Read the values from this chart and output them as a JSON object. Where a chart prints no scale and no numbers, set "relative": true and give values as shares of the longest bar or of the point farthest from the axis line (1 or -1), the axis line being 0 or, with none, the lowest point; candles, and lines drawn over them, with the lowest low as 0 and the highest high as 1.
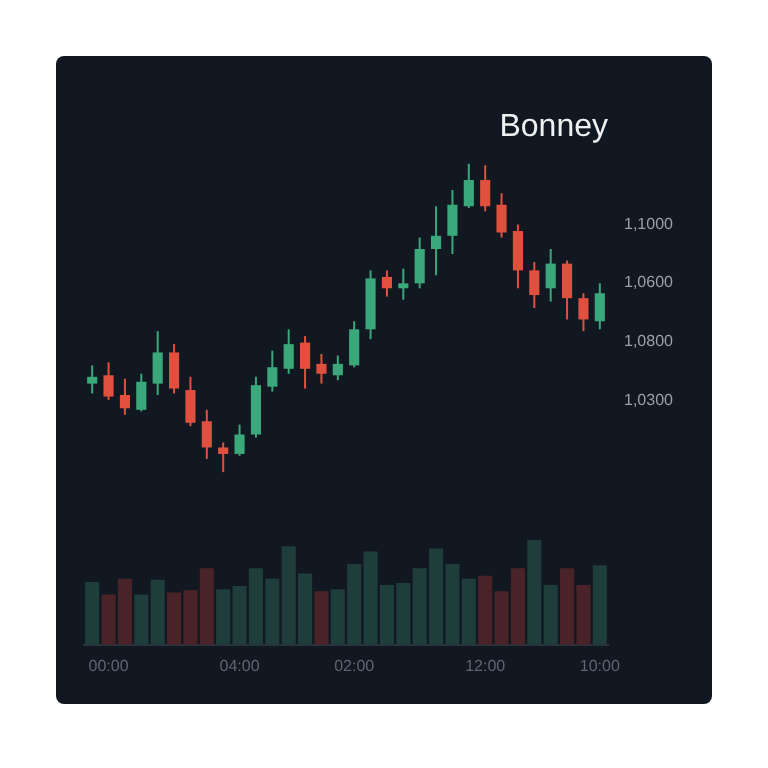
{
  "chart_data": [
    {
      "type": "candlestick",
      "title": "Bonney",
      "relative": true,
      "categories": [
        null,
        null,
        null,
        null,
        null,
        null,
        null,
        null,
        null,
        null,
        null,
        null,
        null,
        null,
        null,
        null,
        null,
        null,
        null,
        null,
        null,
        null,
        null,
        null,
        null,
        null,
        null,
        null,
        null,
        null,
        null,
        null
      ],
      "ohlc": [
        [
          0.287,
          0.346,
          0.255,
          0.309
        ],
        [
          0.314,
          0.356,
          0.234,
          0.245
        ],
        [
          0.25,
          0.303,
          0.186,
          0.207
        ],
        [
          0.202,
          0.319,
          0.197,
          0.293
        ],
        [
          0.287,
          0.457,
          0.25,
          0.388
        ],
        [
          0.388,
          0.415,
          0.255,
          0.271
        ],
        [
          0.266,
          0.309,
          0.149,
          0.16
        ],
        [
          0.165,
          0.202,
          0.043,
          0.08
        ],
        [
          0.08,
          0.096,
          0,
          0.059
        ],
        [
          0.059,
          0.154,
          0.053,
          0.122
        ],
        [
          0.122,
          0.309,
          0.112,
          0.282
        ],
        [
          0.277,
          0.394,
          0.261,
          0.34
        ],
        [
          0.335,
          0.463,
          0.319,
          0.415
        ],
        [
          0.42,
          0.441,
          0.271,
          0.335
        ],
        [
          0.351,
          0.383,
          0.287,
          0.319
        ],
        [
          0.314,
          0.378,
          0.298,
          0.351
        ],
        [
          0.346,
          0.489,
          0.34,
          0.463
        ],
        [
          0.463,
          0.654,
          0.431,
          0.628
        ],
        [
          0.633,
          0.654,
          0.569,
          0.596
        ],
        [
          0.596,
          0.66,
          0.559,
          0.612
        ],
        [
          0.612,
          0.761,
          0.596,
          0.723
        ],
        [
          0.723,
          0.862,
          0.638,
          0.766
        ],
        [
          0.766,
          0.915,
          0.707,
          0.867
        ],
        [
          0.862,
          1,
          0.856,
          0.947
        ],
        [
          0.947,
          0.995,
          0.846,
          0.862
        ],
        [
          0.867,
          0.904,
          0.761,
          0.777
        ],
        [
          0.782,
          0.803,
          0.596,
          0.654
        ],
        [
          0.654,
          0.681,
          0.532,
          0.574
        ],
        [
          0.596,
          0.723,
          0.553,
          0.676
        ],
        [
          0.676,
          0.686,
          0.495,
          0.564
        ],
        [
          0.564,
          0.58,
          0.457,
          0.495
        ],
        [
          0.489,
          0.612,
          0.463,
          0.58
        ]
      ],
      "annotations": [
        "1,1000",
        "1,0600",
        "1,0800",
        "1,0300"
      ]
    },
    {
      "type": "bar",
      "relative": true,
      "categories": [
        null,
        "00:00",
        null,
        null,
        null,
        null,
        null,
        null,
        null,
        "04:00",
        null,
        null,
        null,
        null,
        null,
        null,
        "02:00",
        null,
        null,
        null,
        null,
        null,
        null,
        null,
        "12:00",
        null,
        null,
        null,
        null,
        null,
        null,
        "10:00"
      ],
      "values": [
        0.6,
        0.48,
        0.63,
        0.48,
        0.62,
        0.5,
        0.52,
        0.73,
        0.53,
        0.56,
        0.73,
        0.63,
        0.94,
        0.68,
        0.51,
        0.53,
        0.77,
        0.89,
        0.57,
        0.59,
        0.73,
        0.92,
        0.77,
        0.63,
        0.66,
        0.51,
        0.73,
        1,
        0.57,
        0.73,
        0.57,
        0.76
      ],
      "colors": [
        "#1f3d3a",
        "#4a2328",
        "#4a2328",
        "#1f3d3a",
        "#1f3d3a",
        "#4a2328",
        "#4a2328",
        "#4a2328",
        "#1f3d3a",
        "#1f3d3a",
        "#1f3d3a",
        "#1f3d3a",
        "#1f3d3a",
        "#1f3d3a",
        "#4a2328",
        "#1f3d3a",
        "#1f3d3a",
        "#1f3d3a",
        "#1f3d3a",
        "#1f3d3a",
        "#1f3d3a",
        "#1f3d3a",
        "#1f3d3a",
        "#1f3d3a",
        "#4a2328",
        "#4a2328",
        "#4a2328",
        "#1f3d3a",
        "#1f3d3a",
        "#4a2328",
        "#4a2328",
        "#1f3d3a"
      ]
    }
  ]
}
